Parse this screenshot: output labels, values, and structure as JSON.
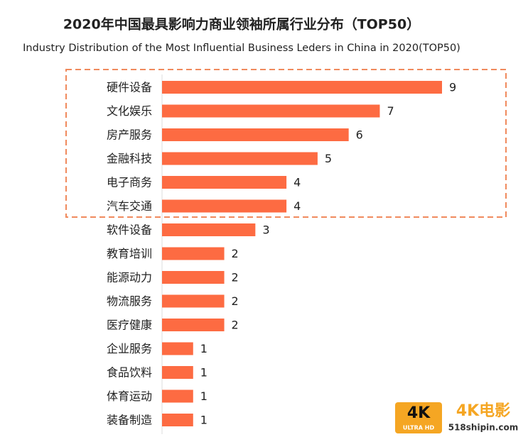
{
  "chart_data": {
    "type": "barh",
    "title": "2020年中国最具影响力商业领袖所属行业分布（TOP50）",
    "subtitle": "Industry Distribution of the Most Influential Business Leders in China in 2020(TOP50)",
    "categories": [
      "硬件设备",
      "文化娱乐",
      "房产服务",
      "金融科技",
      "电子商务",
      "汽车交通",
      "软件设备",
      "教育培训",
      "能源动力",
      "物流服务",
      "医疗健康",
      "企业服务",
      "食品饮料",
      "体育运动",
      "装备制造"
    ],
    "values": [
      9,
      7,
      6,
      5,
      4,
      4,
      3,
      2,
      2,
      2,
      2,
      1,
      1,
      1,
      1
    ],
    "color": "#fd6b42",
    "xlim": [
      0,
      9
    ]
  },
  "watermark": {
    "badge": "4K",
    "badge_sub": "ULTRA HD",
    "name": "4K电影",
    "site": "518shipin.com"
  }
}
